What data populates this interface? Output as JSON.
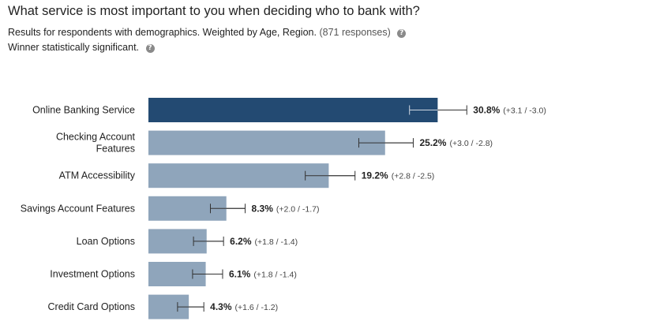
{
  "header": {
    "title": "What service is most important to you when deciding who to bank with?",
    "subtitle_main": "Results for respondents with demographics. Weighted by Age, Region.",
    "responses": "(871 responses)",
    "significance": "Winner statistically significant.",
    "help_icon": "question-circle-icon"
  },
  "colors": {
    "winner_bar": "#234a72",
    "bar": "#8fa5bb",
    "error_bar": "#333333"
  },
  "chart_data": {
    "type": "bar",
    "orientation": "horizontal",
    "title": "What service is most important to you when deciding who to bank with?",
    "unit": "%",
    "xlim": [
      0,
      48
    ],
    "grid": false,
    "categories": [
      "Online Banking Service",
      "Checking Account Features",
      "ATM Accessibility",
      "Savings Account Features",
      "Loan Options",
      "Investment Options",
      "Credit Card Options"
    ],
    "category_lines": [
      [
        "Online Banking Service"
      ],
      [
        "Checking Account",
        "Features"
      ],
      [
        "ATM Accessibility"
      ],
      [
        "Savings Account Features"
      ],
      [
        "Loan Options"
      ],
      [
        "Investment Options"
      ],
      [
        "Credit Card Options"
      ]
    ],
    "values": [
      30.8,
      25.2,
      19.2,
      8.3,
      6.2,
      6.1,
      4.3
    ],
    "error_plus": [
      3.1,
      3.0,
      2.8,
      2.0,
      1.8,
      1.8,
      1.6
    ],
    "error_minus": [
      3.0,
      2.8,
      2.5,
      1.7,
      1.4,
      1.4,
      1.2
    ],
    "value_labels": [
      "30.8%",
      "25.2%",
      "19.2%",
      "8.3%",
      "6.2%",
      "6.1%",
      "4.3%"
    ],
    "ci_labels": [
      "(+3.1 / -3.0)",
      "(+3.0 / -2.8)",
      "(+2.8 / -2.5)",
      "(+2.0 / -1.7)",
      "(+1.8 / -1.4)",
      "(+1.8 / -1.4)",
      "(+1.6 / -1.2)"
    ],
    "winner_index": 0
  }
}
